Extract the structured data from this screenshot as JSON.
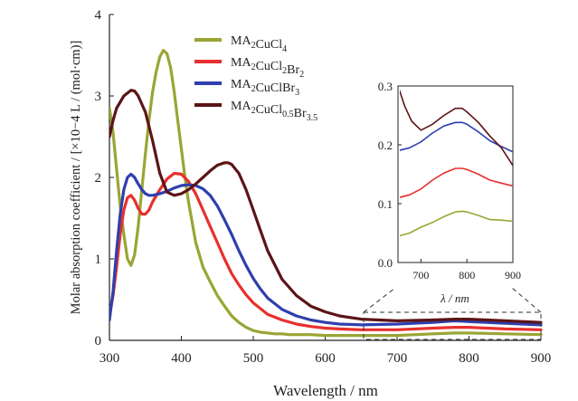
{
  "chart_data": [
    {
      "type": "line",
      "title": "",
      "xlabel": "Wavelength / nm",
      "ylabel": "Molar absorption coefficient / [×10−4 L / (mol·cm)]",
      "xlim": [
        300,
        900
      ],
      "ylim": [
        0,
        4
      ],
      "xticks": [
        300,
        400,
        500,
        600,
        700,
        800,
        900
      ],
      "yticks": [
        0,
        1,
        2,
        3,
        4
      ],
      "grid": false,
      "legend_position": "top-center",
      "series": [
        {
          "name": "MA2CuCl4",
          "legend": {
            "base": "MA",
            "sub1": "2",
            "mid": "CuCl",
            "sub2": "4",
            "mid2": "",
            "sub3": ""
          },
          "color": "#9aa534",
          "x": [
            300,
            305,
            310,
            315,
            320,
            325,
            330,
            335,
            340,
            345,
            350,
            355,
            360,
            365,
            370,
            375,
            380,
            385,
            390,
            395,
            400,
            405,
            410,
            415,
            420,
            430,
            440,
            450,
            460,
            470,
            480,
            490,
            500,
            510,
            520,
            530,
            540,
            550,
            560,
            580,
            600,
            650,
            700,
            750,
            780,
            800,
            850,
            900
          ],
          "y": [
            2.85,
            2.55,
            2.1,
            1.65,
            1.3,
            1.0,
            0.92,
            1.05,
            1.4,
            1.85,
            2.3,
            2.7,
            3.05,
            3.3,
            3.48,
            3.56,
            3.52,
            3.35,
            3.05,
            2.7,
            2.35,
            2.0,
            1.7,
            1.45,
            1.2,
            0.9,
            0.72,
            0.55,
            0.42,
            0.3,
            0.22,
            0.16,
            0.12,
            0.1,
            0.09,
            0.08,
            0.08,
            0.07,
            0.07,
            0.07,
            0.06,
            0.06,
            0.06,
            0.08,
            0.09,
            0.09,
            0.08,
            0.07
          ]
        },
        {
          "name": "MA2CuCl2Br2",
          "legend": {
            "base": "MA",
            "sub1": "2",
            "mid": "CuCl",
            "sub2": "2",
            "mid2": "Br",
            "sub3": "2"
          },
          "color": "#e8302e",
          "x": [
            300,
            305,
            310,
            315,
            320,
            325,
            330,
            335,
            340,
            345,
            350,
            355,
            360,
            370,
            380,
            390,
            400,
            410,
            420,
            430,
            440,
            450,
            460,
            470,
            480,
            490,
            500,
            520,
            540,
            560,
            580,
            600,
            620,
            650,
            700,
            750,
            780,
            800,
            850,
            900
          ],
          "y": [
            0.3,
            0.55,
            0.9,
            1.3,
            1.6,
            1.75,
            1.78,
            1.72,
            1.62,
            1.55,
            1.55,
            1.6,
            1.7,
            1.85,
            1.98,
            2.05,
            2.04,
            1.95,
            1.8,
            1.6,
            1.4,
            1.2,
            1.0,
            0.82,
            0.68,
            0.56,
            0.46,
            0.32,
            0.25,
            0.2,
            0.17,
            0.15,
            0.14,
            0.13,
            0.13,
            0.15,
            0.16,
            0.16,
            0.14,
            0.13
          ]
        },
        {
          "name": "MA2CuClBr3",
          "legend": {
            "base": "MA",
            "sub1": "2",
            "mid": "CuClBr",
            "sub2": "3",
            "mid2": "",
            "sub3": ""
          },
          "color": "#2f3fae",
          "x": [
            300,
            305,
            310,
            315,
            320,
            325,
            330,
            335,
            340,
            345,
            350,
            355,
            360,
            370,
            380,
            390,
            400,
            410,
            420,
            430,
            440,
            450,
            460,
            470,
            480,
            490,
            500,
            510,
            520,
            540,
            560,
            580,
            600,
            620,
            650,
            700,
            750,
            780,
            800,
            850,
            900
          ],
          "y": [
            0.25,
            0.6,
            1.1,
            1.55,
            1.85,
            2.0,
            2.04,
            2.0,
            1.92,
            1.85,
            1.8,
            1.78,
            1.78,
            1.8,
            1.83,
            1.87,
            1.9,
            1.91,
            1.9,
            1.86,
            1.78,
            1.65,
            1.48,
            1.3,
            1.1,
            0.92,
            0.76,
            0.63,
            0.52,
            0.38,
            0.3,
            0.25,
            0.22,
            0.2,
            0.19,
            0.2,
            0.22,
            0.24,
            0.23,
            0.21,
            0.19
          ]
        },
        {
          "name": "MA2CuCl0.5Br3.5",
          "legend": {
            "base": "MA",
            "sub1": "2",
            "mid": "CuCl",
            "sub2": "0.5",
            "mid2": "Br",
            "sub3": "3.5"
          },
          "color": "#5c1416",
          "x": [
            300,
            305,
            310,
            320,
            330,
            335,
            340,
            350,
            360,
            370,
            380,
            390,
            400,
            410,
            420,
            430,
            440,
            450,
            460,
            465,
            470,
            480,
            490,
            500,
            510,
            520,
            540,
            560,
            580,
            600,
            620,
            650,
            700,
            750,
            780,
            800,
            850,
            900
          ],
          "y": [
            2.5,
            2.7,
            2.85,
            3.0,
            3.07,
            3.06,
            3.0,
            2.8,
            2.45,
            2.05,
            1.82,
            1.78,
            1.8,
            1.85,
            1.92,
            2.0,
            2.08,
            2.15,
            2.18,
            2.18,
            2.16,
            2.05,
            1.85,
            1.6,
            1.35,
            1.1,
            0.75,
            0.55,
            0.42,
            0.35,
            0.3,
            0.26,
            0.24,
            0.25,
            0.26,
            0.26,
            0.24,
            0.22
          ]
        }
      ]
    },
    {
      "type": "line",
      "title": "",
      "inset": true,
      "xlabel": "λ / nm",
      "ylabel": "",
      "xlim": [
        650,
        900
      ],
      "ylim": [
        0,
        0.3
      ],
      "xticks": [
        700,
        800,
        900
      ],
      "yticks": [
        0.0,
        0.1,
        0.2,
        0.3
      ],
      "grid": false,
      "series": [
        {
          "name": "MA2CuCl4",
          "color": "#9aa534",
          "x": [
            650,
            675,
            700,
            725,
            750,
            775,
            790,
            800,
            825,
            850,
            875,
            900
          ],
          "y": [
            0.045,
            0.05,
            0.06,
            0.068,
            0.078,
            0.086,
            0.087,
            0.086,
            0.08,
            0.073,
            0.072,
            0.07
          ]
        },
        {
          "name": "MA2CuCl2Br2",
          "color": "#e8302e",
          "x": [
            650,
            675,
            700,
            725,
            750,
            775,
            790,
            800,
            825,
            850,
            875,
            900
          ],
          "y": [
            0.11,
            0.115,
            0.125,
            0.14,
            0.152,
            0.16,
            0.16,
            0.158,
            0.15,
            0.14,
            0.135,
            0.13
          ]
        },
        {
          "name": "MA2CuClBr3",
          "color": "#2f3fae",
          "x": [
            650,
            675,
            700,
            725,
            750,
            775,
            790,
            800,
            825,
            850,
            875,
            900
          ],
          "y": [
            0.19,
            0.195,
            0.205,
            0.22,
            0.232,
            0.238,
            0.238,
            0.235,
            0.222,
            0.207,
            0.197,
            0.188
          ]
        },
        {
          "name": "MA2CuCl0.5Br3.5",
          "color": "#5c1416",
          "x": [
            650,
            665,
            680,
            700,
            725,
            750,
            775,
            790,
            800,
            825,
            850,
            875,
            900
          ],
          "y": [
            0.3,
            0.265,
            0.24,
            0.225,
            0.235,
            0.25,
            0.262,
            0.262,
            0.256,
            0.238,
            0.215,
            0.195,
            0.165
          ]
        }
      ]
    }
  ]
}
